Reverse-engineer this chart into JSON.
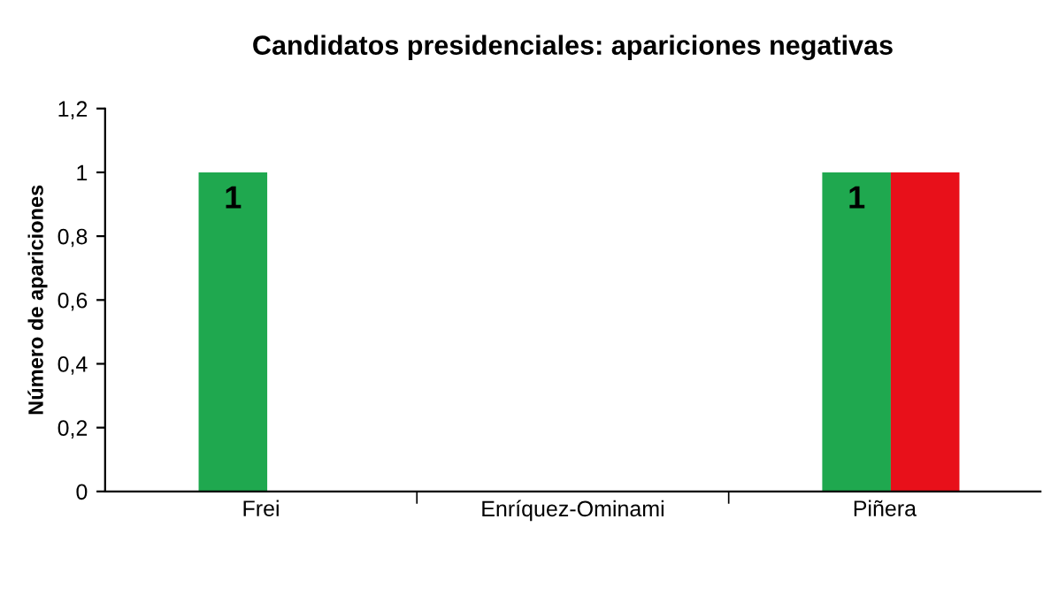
{
  "chart_data": {
    "type": "bar",
    "title": "Candidatos presidenciales: apariciones negativas",
    "ylabel": "Número de apariciones",
    "categories": [
      "Frei",
      "Enríquez-Ominami",
      "Piñera"
    ],
    "series": [
      {
        "color": "#1fa84f",
        "values": [
          1,
          0,
          1
        ],
        "value_labels": [
          "1",
          null,
          "1"
        ]
      },
      {
        "color": "#e8101a",
        "values": [
          0,
          0,
          1
        ],
        "value_labels": [
          null,
          null,
          null
        ]
      }
    ],
    "ylim": [
      0,
      1.2
    ],
    "yticks": [
      {
        "value": 0,
        "label": "0"
      },
      {
        "value": 0.2,
        "label": "0,2"
      },
      {
        "value": 0.4,
        "label": "0,4"
      },
      {
        "value": 0.6,
        "label": "0,6"
      },
      {
        "value": 0.8,
        "label": "0,8"
      },
      {
        "value": 1,
        "label": "1"
      },
      {
        "value": 1.2,
        "label": "1,2"
      }
    ],
    "grid": false,
    "legend": false
  }
}
